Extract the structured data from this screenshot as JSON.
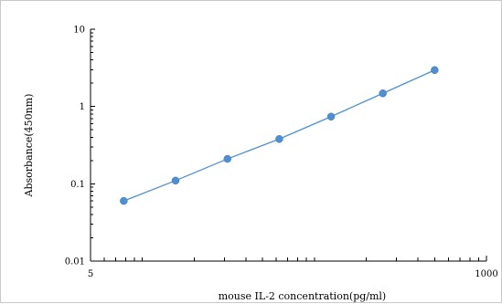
{
  "chart_data": {
    "type": "scatter",
    "title": "",
    "xlabel": "mouse IL-2 concentration(pg/ml)",
    "ylabel": "Absorbance(450nm)",
    "x_scale": "log",
    "y_scale": "log",
    "xlim": [
      5,
      1000
    ],
    "ylim": [
      0.01,
      10
    ],
    "x_ticks": [
      {
        "value": 5,
        "label": "5"
      },
      {
        "value": 1000,
        "label": "1000"
      }
    ],
    "y_ticks": [
      {
        "value": 0.01,
        "label": "0.01"
      },
      {
        "value": 0.1,
        "label": "0.1"
      },
      {
        "value": 1,
        "label": "1"
      },
      {
        "value": 10,
        "label": "10"
      }
    ],
    "grid": false,
    "legend": "none",
    "series": [
      {
        "x": [
          7.8,
          15.6,
          31.25,
          62.5,
          125,
          250,
          500
        ],
        "y": [
          0.06,
          0.11,
          0.21,
          0.38,
          0.74,
          1.48,
          2.96
        ]
      }
    ],
    "colors": {
      "series": "#4f8fd0",
      "axis": "#000000"
    }
  }
}
